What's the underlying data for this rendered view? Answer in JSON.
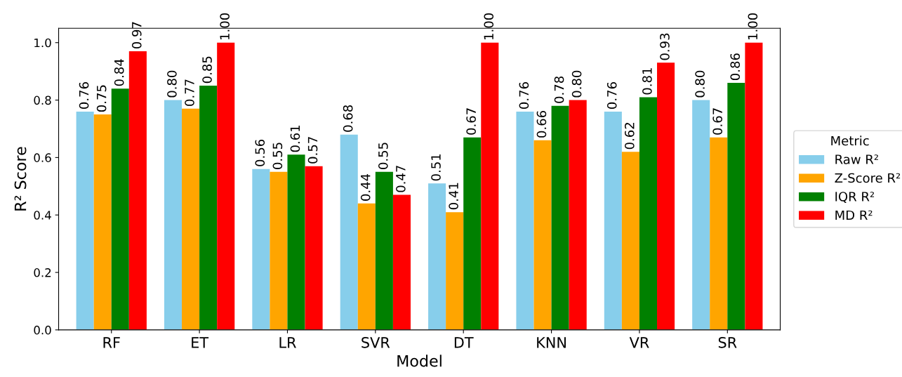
{
  "chart_data": {
    "type": "bar",
    "xlabel": "Model",
    "ylabel": "R² Score",
    "legend_title": "Metric",
    "categories": [
      "RF",
      "ET",
      "LR",
      "SVR",
      "DT",
      "KNN",
      "VR",
      "SR"
    ],
    "series": [
      {
        "name": "Raw R²",
        "color": "#87ceeb",
        "values": [
          0.76,
          0.8,
          0.56,
          0.68,
          0.51,
          0.76,
          0.76,
          0.8
        ],
        "value_labels": [
          "0.76",
          "0.80",
          "0.56",
          "0.68",
          "0.51",
          "0.76",
          "0.76",
          "0.80"
        ]
      },
      {
        "name": "Z-Score R²",
        "color": "#ffa500",
        "values": [
          0.75,
          0.77,
          0.55,
          0.44,
          0.41,
          0.66,
          0.62,
          0.67
        ],
        "value_labels": [
          "0.75",
          "0.77",
          "0.55",
          "0.44",
          "0.41",
          "0.66",
          "0.62",
          "0.67"
        ]
      },
      {
        "name": "IQR R²",
        "color": "#008000",
        "values": [
          0.84,
          0.85,
          0.61,
          0.55,
          0.67,
          0.78,
          0.81,
          0.86
        ],
        "value_labels": [
          "0.84",
          "0.85",
          "0.61",
          "0.55",
          "0.67",
          "0.78",
          "0.81",
          "0.86"
        ]
      },
      {
        "name": "MD R²",
        "color": "#ff0000",
        "values": [
          0.97,
          1.0,
          0.57,
          0.47,
          1.0,
          0.8,
          0.93,
          1.0
        ],
        "value_labels": [
          "0.97",
          "1.00",
          "0.57",
          "0.47",
          "1.00",
          "0.80",
          "0.93",
          "1.00"
        ]
      }
    ],
    "ylim": [
      0,
      1.05
    ],
    "yticks": [
      {
        "value": 0,
        "label": "0.0"
      },
      {
        "value": 0.2,
        "label": "0.2"
      },
      {
        "value": 0.4,
        "label": "0.4"
      },
      {
        "value": 0.6,
        "label": "0.6"
      },
      {
        "value": 0.8,
        "label": "0.8"
      },
      {
        "value": 1,
        "label": "1.0"
      }
    ],
    "grid": false,
    "legend": "right"
  }
}
